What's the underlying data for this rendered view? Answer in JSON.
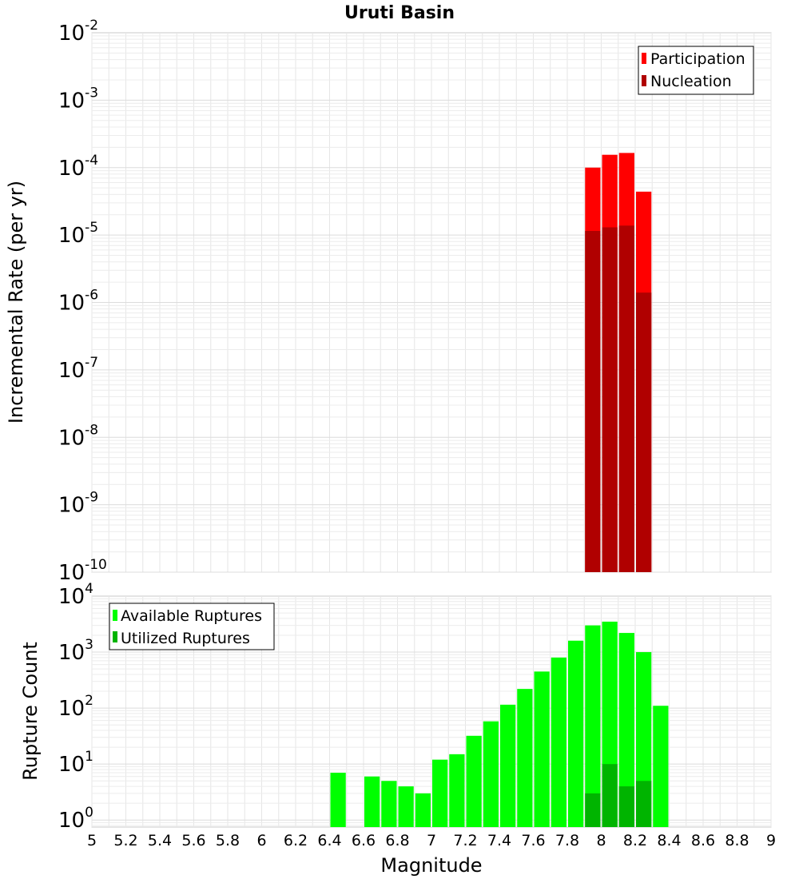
{
  "chart_data": [
    {
      "type": "bar",
      "title": "Uruti Basin",
      "ylabel": "Incremental Rate (per yr)",
      "xlabel": "",
      "yscale": "log",
      "ylim": [
        1e-10,
        0.01
      ],
      "xlim": [
        5,
        9
      ],
      "bin_width": 0.1,
      "y_ticks": [
        {
          "base": "10",
          "exp": "-10"
        },
        {
          "base": "10",
          "exp": "-9"
        },
        {
          "base": "10",
          "exp": "-8"
        },
        {
          "base": "10",
          "exp": "-7"
        },
        {
          "base": "10",
          "exp": "-6"
        },
        {
          "base": "10",
          "exp": "-5"
        },
        {
          "base": "10",
          "exp": "-4"
        },
        {
          "base": "10",
          "exp": "-3"
        },
        {
          "base": "10",
          "exp": "-2"
        }
      ],
      "legend": {
        "position": "top-right",
        "entries": [
          {
            "label": "Participation",
            "color": "#ff0000"
          },
          {
            "label": "Nucleation",
            "color": "#b00000"
          }
        ]
      },
      "series": [
        {
          "name": "Participation",
          "color": "#ff0000",
          "x": [
            7.95,
            8.05,
            8.15,
            8.25
          ],
          "values": [
            0.0001,
            0.000155,
            0.000165,
            4.4e-05
          ]
        },
        {
          "name": "Nucleation",
          "color": "#b00000",
          "x": [
            7.95,
            8.05,
            8.15,
            8.25
          ],
          "values": [
            1.15e-05,
            1.3e-05,
            1.38e-05,
            1.4e-06
          ]
        }
      ]
    },
    {
      "type": "bar",
      "title": "",
      "ylabel": "Rupture Count",
      "xlabel": "Magnitude",
      "yscale": "log",
      "ylim": [
        0.75,
        10000
      ],
      "xlim": [
        5,
        9
      ],
      "bin_width": 0.1,
      "y_ticks": [
        {
          "value": 1,
          "base": "10",
          "exp": "0"
        },
        {
          "value": 10,
          "base": "10",
          "exp": "1"
        },
        {
          "value": 100,
          "base": "10",
          "exp": "2"
        },
        {
          "value": 1000,
          "base": "10",
          "exp": "3"
        },
        {
          "value": 10000,
          "base": "10",
          "exp": "4"
        }
      ],
      "x_ticks": [
        "5",
        "5.2",
        "5.4",
        "5.6",
        "5.8",
        "6",
        "6.2",
        "6.4",
        "6.6",
        "6.8",
        "7",
        "7.2",
        "7.4",
        "7.6",
        "7.8",
        "8",
        "8.2",
        "8.4",
        "8.6",
        "8.8",
        "9"
      ],
      "legend": {
        "position": "top-left",
        "entries": [
          {
            "label": "Available Ruptures",
            "color": "#00ff00"
          },
          {
            "label": "Utilized Ruptures",
            "color": "#00b400"
          }
        ]
      },
      "series": [
        {
          "name": "Available Ruptures",
          "color": "#00ff00",
          "x": [
            6.45,
            6.65,
            6.75,
            6.85,
            6.95,
            7.05,
            7.15,
            7.25,
            7.35,
            7.45,
            7.55,
            7.65,
            7.75,
            7.85,
            7.95,
            8.05,
            8.15,
            8.25,
            8.35
          ],
          "values": [
            7,
            6,
            5,
            4,
            3,
            12,
            15,
            32,
            58,
            115,
            220,
            450,
            800,
            1600,
            3000,
            3500,
            2200,
            1000,
            110
          ]
        },
        {
          "name": "Utilized Ruptures",
          "color": "#00b400",
          "x": [
            7.95,
            8.05,
            8.15,
            8.25
          ],
          "values": [
            3,
            10,
            4,
            5
          ]
        }
      ]
    }
  ]
}
